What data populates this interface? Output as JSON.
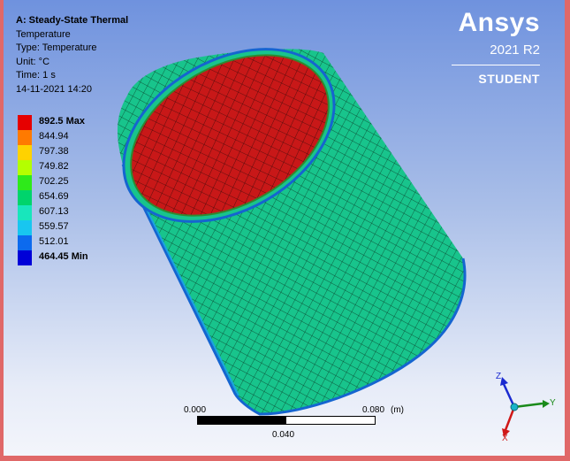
{
  "info": {
    "title": "A: Steady-State Thermal",
    "lines": [
      "Temperature",
      "Type: Temperature",
      "Unit: °C",
      "Time: 1 s",
      "14-11-2021 14:20"
    ]
  },
  "legend": [
    {
      "label": "892.5 Max",
      "color": "#e60000",
      "bold": true
    },
    {
      "label": "844.94",
      "color": "#ff7a00",
      "bold": false
    },
    {
      "label": "797.38",
      "color": "#ffd200",
      "bold": false
    },
    {
      "label": "749.82",
      "color": "#b4ff00",
      "bold": false
    },
    {
      "label": "702.25",
      "color": "#2eea1a",
      "bold": false
    },
    {
      "label": "654.69",
      "color": "#00d46c",
      "bold": false
    },
    {
      "label": "607.13",
      "color": "#18e6bc",
      "bold": false
    },
    {
      "label": "559.57",
      "color": "#18c6f0",
      "bold": false
    },
    {
      "label": "512.01",
      "color": "#0c6aee",
      "bold": false
    },
    {
      "label": "464.45 Min",
      "color": "#0000d8",
      "bold": true
    }
  ],
  "brand": {
    "logo": "Ansys",
    "version": "2021 R2",
    "edition": "STUDENT"
  },
  "scale": {
    "start": "0.000",
    "end": "0.080",
    "unit": "(m)",
    "mid": "0.040"
  },
  "triad": {
    "x": "X",
    "y": "Y",
    "z": "Z"
  },
  "colors": {
    "hot": "#d91c1c",
    "shell": "#19d090",
    "mesh": "#0a3a26"
  }
}
